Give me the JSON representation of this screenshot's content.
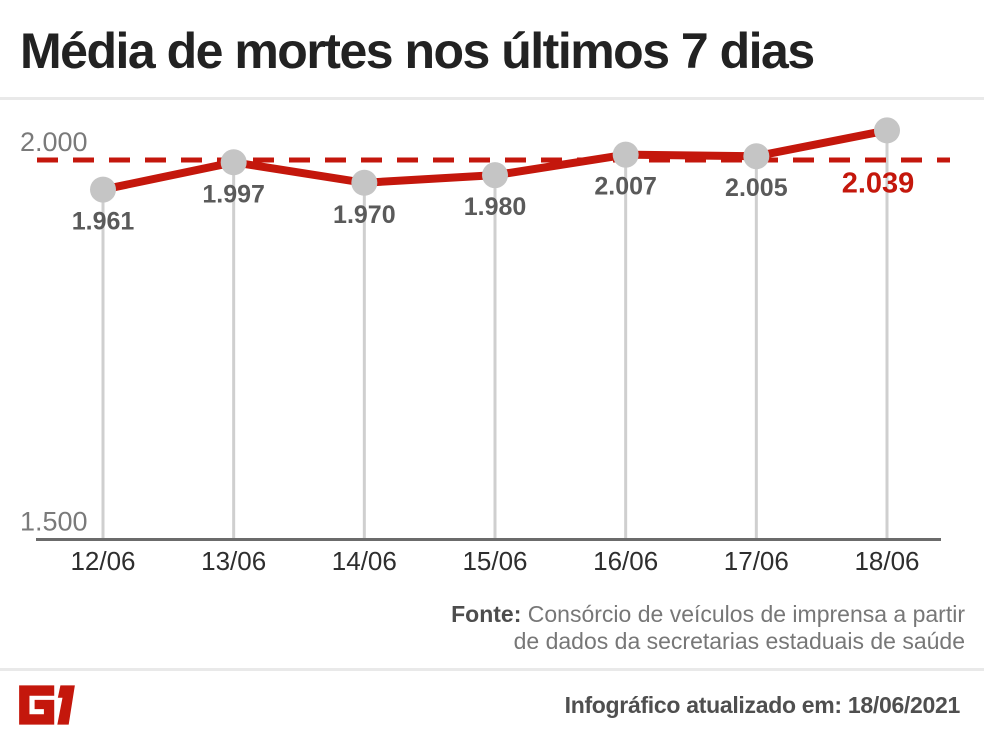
{
  "header": {
    "title": "Média de mortes nos últimos 7 dias"
  },
  "chart_data": {
    "type": "line",
    "title": "Média de mortes nos últimos 7 dias",
    "categories": [
      "12/06",
      "13/06",
      "14/06",
      "15/06",
      "16/06",
      "17/06",
      "18/06"
    ],
    "values": [
      1961,
      1997,
      1970,
      1980,
      2007,
      2005,
      2039
    ],
    "point_labels": [
      "1.961",
      "1.997",
      "1.970",
      "1.980",
      "2.007",
      "2.005",
      "2.039"
    ],
    "highlight_index": 6,
    "yticks": [
      {
        "value": 2000,
        "label": "2.000"
      },
      {
        "value": 1500,
        "label": "1.500"
      }
    ],
    "ylim": [
      1500,
      2060
    ],
    "reference_line": {
      "value": 2000,
      "style": "dashed"
    },
    "grid": false,
    "legend": false,
    "colors": {
      "line": "#c4170c",
      "dashed_reference": "#c4170c",
      "highlight_label": "#c4170c",
      "marker": "#c5c5c5",
      "stem": "#cfcfcf",
      "axis": "#6b6b6b",
      "point_label": "#5a5a5a",
      "tick_label": "#7a7a7a"
    }
  },
  "source": {
    "label": "Fonte:",
    "lines": [
      "Consórcio de veículos de imprensa a partir",
      "de dados da secretarias estaduais de saúde"
    ]
  },
  "footer": {
    "logo": "G1",
    "logo_color": "#c4170c",
    "updated_text": "Infográfico atualizado em: 18/06/2021"
  }
}
